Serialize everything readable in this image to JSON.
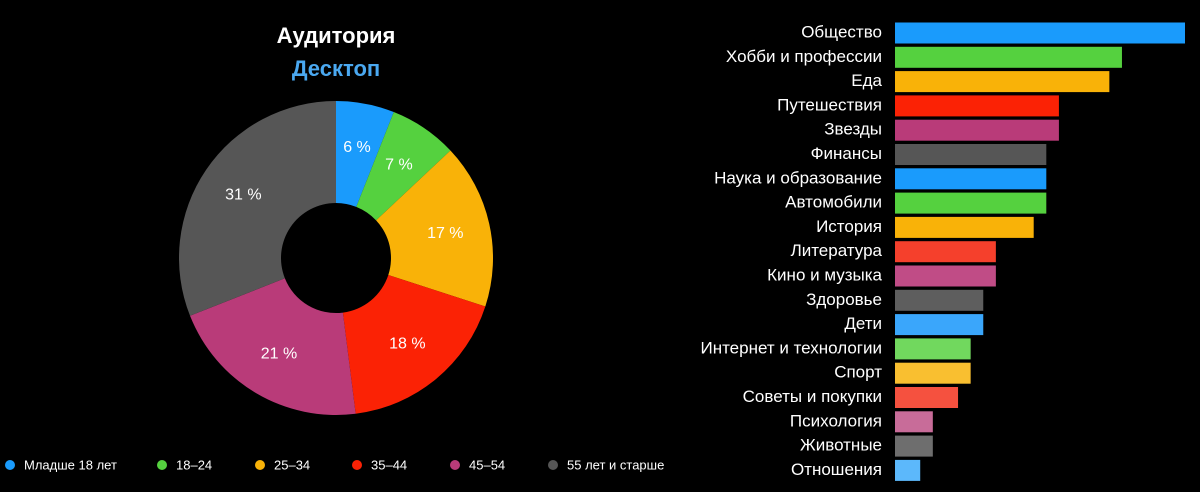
{
  "chart_data": [
    {
      "type": "pie",
      "title": "Аудитория",
      "subtitle": "Десктоп",
      "categories": [
        "Младше 18 лет",
        "18–24",
        "25–34",
        "35–44",
        "45–54",
        "55 лет и старше"
      ],
      "values": [
        6,
        7,
        17,
        18,
        21,
        31
      ],
      "value_labels": [
        "6 %",
        "7 %",
        "17 %",
        "18 %",
        "21 %",
        "31 %"
      ],
      "colors": [
        "#1a9bfc",
        "#55d13f",
        "#f9b208",
        "#fb2205",
        "#b93b79",
        "#565656"
      ],
      "legend": "bottom"
    },
    {
      "type": "barh",
      "categories": [
        "Общество",
        "Хобби и профессии",
        "Еда",
        "Путешествия",
        "Звезды",
        "Финансы",
        "Наука и образование",
        "Автомобили",
        "История",
        "Литература",
        "Кино и музыка",
        "Здоровье",
        "Дети",
        "Интернет и технологии",
        "Спорт",
        "Советы и покупки",
        "Психология",
        "Животные",
        "Отношения"
      ],
      "values": [
        23,
        18,
        17,
        13,
        13,
        12,
        12,
        12,
        11,
        8,
        8,
        7,
        7,
        6,
        6,
        5,
        3,
        3,
        2
      ],
      "colors": [
        "#1a9bfc",
        "#55d13f",
        "#f9b208",
        "#fb2205",
        "#b93b79",
        "#565656",
        "#1a9bfc",
        "#55d13f",
        "#f9b208",
        "#f5402c",
        "#c04c86",
        "#5e5e5e",
        "#3aa6fb",
        "#71d85e",
        "#f9bf30",
        "#f5513f",
        "#c86c99",
        "#6e6e6e",
        "#5cb8fb"
      ]
    }
  ]
}
